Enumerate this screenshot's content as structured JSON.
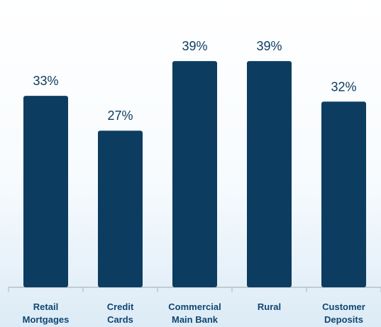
{
  "chart_data": {
    "type": "bar",
    "categories": [
      [
        "Retail",
        "Mortgages"
      ],
      [
        "Credit",
        "Cards"
      ],
      [
        "Commercial",
        "Main Bank"
      ],
      [
        "Rural"
      ],
      [
        "Customer",
        "Deposits"
      ]
    ],
    "values": [
      33,
      27,
      39,
      39,
      32
    ],
    "data_labels": [
      "33%",
      "27%",
      "39%",
      "39%",
      "32%"
    ],
    "ylim": [
      0,
      45
    ],
    "grid": false,
    "bar_color": "#0c3d61",
    "label_color": "#0b3a5d",
    "tick_label_color": "#0f4670"
  }
}
